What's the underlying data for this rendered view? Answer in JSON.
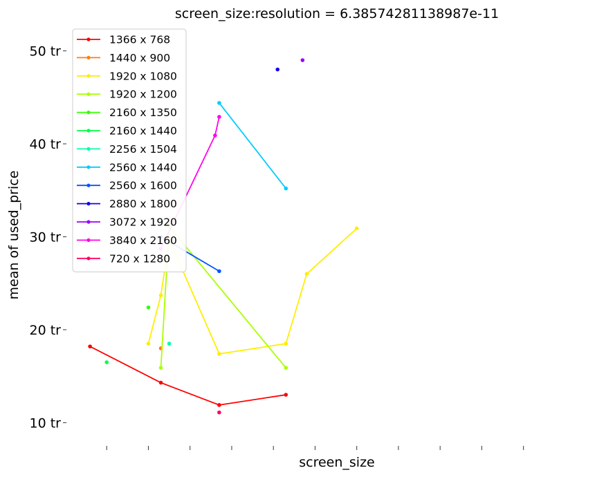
{
  "chart_data": {
    "type": "line",
    "title": "screen_size:resolution = 6.38574281138987e-11",
    "xlabel": "screen_size",
    "ylabel": "mean of used_price",
    "ylim": [
      7.5,
      52.5
    ],
    "xlim": [
      11.55,
      17.65
    ],
    "y_unit_note": "values in tr",
    "y_ticks": [
      {
        "value": 10,
        "label": "10 tr"
      },
      {
        "value": 20,
        "label": "20 tr"
      },
      {
        "value": 30,
        "label": "30 tr"
      },
      {
        "value": 40,
        "label": "40 tr"
      },
      {
        "value": 50,
        "label": "50 tr"
      }
    ],
    "x_ticks": [
      12,
      12.5,
      13,
      13.5,
      14,
      14.5,
      15,
      15.5,
      16,
      16.5,
      17
    ],
    "x_tick_labels_visible": false,
    "grid": false,
    "legend_position": "top-left",
    "series": [
      {
        "name": "1366 x 768",
        "color": "#ff0000",
        "x": [
          11.8,
          12.65,
          13.35,
          14.15
        ],
        "y": [
          18.2,
          14.3,
          11.9,
          13.0
        ]
      },
      {
        "name": "1440 x 900",
        "color": "#ff7f0e",
        "x": [
          12.65
        ],
        "y": [
          18.0
        ]
      },
      {
        "name": "1920 x 1080",
        "color": "#ffee00",
        "x": [
          12.5,
          12.65,
          12.75,
          13.35,
          14.15,
          14.4,
          15.0
        ],
        "y": [
          18.5,
          23.7,
          29.7,
          17.4,
          18.5,
          26.0,
          30.9
        ]
      },
      {
        "name": "1920 x 1200",
        "color": "#aaff00",
        "x": [
          12.65,
          12.75,
          14.15
        ],
        "y": [
          15.9,
          31.1,
          15.9
        ]
      },
      {
        "name": "2160 x 1350",
        "color": "#33ff00",
        "x": [
          12.5
        ],
        "y": [
          22.4
        ]
      },
      {
        "name": "2160 x 1440",
        "color": "#00ff44",
        "x": [
          12.0
        ],
        "y": [
          16.5
        ]
      },
      {
        "name": "2256 x 1504",
        "color": "#00ffaa",
        "x": [
          12.75
        ],
        "y": [
          18.5
        ]
      },
      {
        "name": "2560 x 1440",
        "color": "#00ccff",
        "x": [
          13.35,
          14.15
        ],
        "y": [
          44.4,
          35.2
        ]
      },
      {
        "name": "2560 x 1600",
        "color": "#0055ff",
        "x": [
          12.65,
          13.35
        ],
        "y": [
          30.0,
          26.3
        ]
      },
      {
        "name": "2880 x 1800",
        "color": "#1100ee",
        "x": [
          14.05
        ],
        "y": [
          48.0
        ]
      },
      {
        "name": "3072 x 1920",
        "color": "#9900ff",
        "x": [
          14.35
        ],
        "y": [
          49.0
        ]
      },
      {
        "name": "3840 x 2160",
        "color": "#ff00ee",
        "x": [
          12.65,
          13.3,
          13.35
        ],
        "y": [
          28.7,
          40.9,
          42.9
        ]
      },
      {
        "name": "720 x 1280",
        "color": "#ff0066",
        "x": [
          13.35
        ],
        "y": [
          11.1
        ]
      }
    ]
  }
}
